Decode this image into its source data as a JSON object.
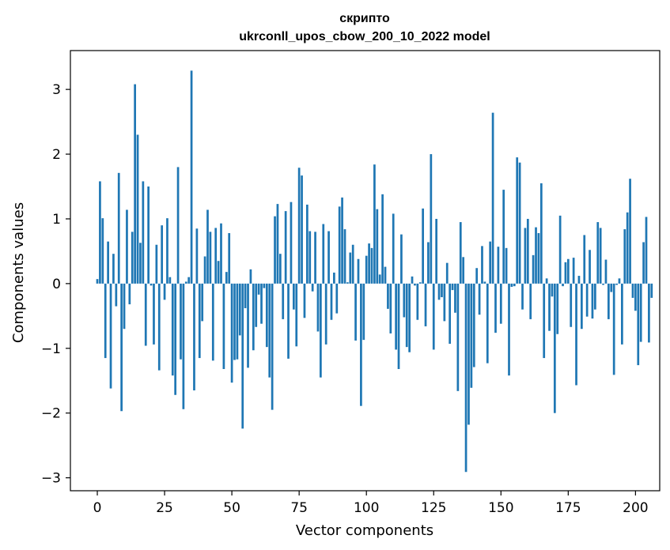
{
  "chart_data": {
    "type": "bar",
    "title_line1": "скрипто",
    "title_line2": "ukrconll_upos_cbow_200_10_2022 model",
    "xlabel": "Vector components",
    "ylabel": "Components values",
    "xlim": [
      -10,
      209
    ],
    "ylim": [
      -3.2,
      3.6
    ],
    "xticks": [
      0,
      25,
      50,
      75,
      100,
      125,
      150,
      175,
      200
    ],
    "yticks": [
      -3,
      -2,
      -1,
      0,
      1,
      2,
      3
    ],
    "ytick_labels": [
      "−3",
      "−2",
      "−1",
      "0",
      "1",
      "2",
      "3"
    ],
    "bar_color": "#1f77b4",
    "grid": false,
    "values": [
      0.07,
      1.58,
      1.01,
      -1.15,
      0.65,
      -1.62,
      0.46,
      -0.35,
      1.71,
      -1.97,
      -0.7,
      1.14,
      -0.32,
      0.8,
      3.08,
      2.3,
      0.63,
      1.58,
      -0.96,
      1.5,
      -0.03,
      -0.94,
      0.6,
      -1.34,
      0.9,
      -0.25,
      1.01,
      0.1,
      -1.42,
      -1.72,
      1.8,
      -1.17,
      -1.94,
      0.03,
      0.1,
      3.29,
      -1.65,
      0.85,
      -1.15,
      -0.58,
      0.42,
      1.14,
      0.8,
      -1.19,
      0.86,
      0.35,
      0.93,
      -1.32,
      0.18,
      0.78,
      -1.53,
      -1.18,
      -1.17,
      -0.8,
      -2.24,
      -0.38,
      -1.3,
      0.22,
      -1.03,
      -0.67,
      -0.17,
      -0.62,
      -0.07,
      -0.98,
      -1.45,
      -1.95,
      1.04,
      1.23,
      0.46,
      -0.55,
      1.12,
      -1.16,
      1.26,
      -0.4,
      -0.97,
      1.79,
      1.67,
      -0.53,
      1.22,
      0.81,
      -0.12,
      0.8,
      -0.74,
      -1.45,
      0.92,
      -0.94,
      0.81,
      -0.56,
      0.17,
      -0.46,
      1.19,
      1.33,
      0.84,
      0.02,
      0.48,
      0.6,
      -0.88,
      0.38,
      -1.89,
      -0.87,
      0.43,
      0.62,
      0.55,
      1.84,
      1.15,
      0.14,
      1.38,
      0.26,
      -0.39,
      -0.77,
      1.08,
      -1.02,
      -1.32,
      0.76,
      -0.52,
      -0.98,
      -1.06,
      0.11,
      -0.03,
      -0.56,
      0.02,
      1.16,
      -0.66,
      0.64,
      2.0,
      -1.02,
      1.0,
      -0.25,
      -0.21,
      -0.58,
      0.32,
      -0.93,
      -0.1,
      -0.45,
      -1.66,
      0.95,
      0.41,
      -2.91,
      -2.18,
      -1.61,
      -1.29,
      0.24,
      -0.48,
      0.58,
      0.03,
      -1.23,
      0.65,
      2.64,
      -0.76,
      0.57,
      -0.62,
      1.45,
      0.55,
      -1.42,
      -0.05,
      -0.04,
      1.95,
      1.87,
      -0.4,
      0.86,
      1.0,
      -0.55,
      0.44,
      0.87,
      0.78,
      1.55,
      -1.15,
      0.08,
      -0.73,
      -0.2,
      -2.0,
      -0.78,
      1.05,
      -0.04,
      0.33,
      0.38,
      -0.67,
      0.4,
      -1.57,
      0.12,
      -0.7,
      0.75,
      -0.51,
      0.52,
      -0.54,
      -0.4,
      0.95,
      0.86,
      -0.02,
      0.37,
      -0.55,
      -0.13,
      -1.41,
      -0.02,
      0.08,
      -0.94,
      0.84,
      1.1,
      1.62,
      -0.22,
      -0.42,
      -1.26,
      -0.9,
      0.64,
      1.03,
      -0.91,
      -0.22
    ]
  }
}
